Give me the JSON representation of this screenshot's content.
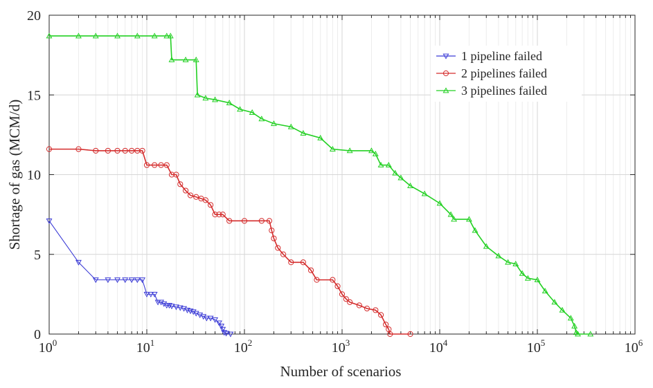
{
  "chart_data": {
    "type": "line",
    "title": "",
    "xlabel": "Number of scenarios",
    "ylabel": "Shortage of gas (MCM/d)",
    "xscale": "log",
    "xlim": [
      1,
      1000000
    ],
    "ylim": [
      0,
      20
    ],
    "x_ticks": [
      {
        "value": 1,
        "base": "10",
        "exp": "0"
      },
      {
        "value": 10,
        "base": "10",
        "exp": "1"
      },
      {
        "value": 100,
        "base": "10",
        "exp": "2"
      },
      {
        "value": 1000,
        "base": "10",
        "exp": "3"
      },
      {
        "value": 10000,
        "base": "10",
        "exp": "4"
      },
      {
        "value": 100000,
        "base": "10",
        "exp": "5"
      },
      {
        "value": 1000000,
        "base": "10",
        "exp": "6"
      }
    ],
    "y_ticks": [
      {
        "value": 0,
        "label": "0"
      },
      {
        "value": 5,
        "label": "5"
      },
      {
        "value": 10,
        "label": "10"
      },
      {
        "value": 15,
        "label": "15"
      },
      {
        "value": 20,
        "label": "20"
      }
    ],
    "grid": true,
    "legend_position": "top-right",
    "series": [
      {
        "name": "1 pipeline failed",
        "color": "#3a3ad6",
        "marker": "triangle-down",
        "points": [
          [
            1,
            7.1
          ],
          [
            2,
            4.5
          ],
          [
            3,
            3.4
          ],
          [
            4,
            3.4
          ],
          [
            5,
            3.4
          ],
          [
            6,
            3.4
          ],
          [
            7,
            3.4
          ],
          [
            8,
            3.4
          ],
          [
            9,
            3.4
          ],
          [
            10,
            2.5
          ],
          [
            11,
            2.5
          ],
          [
            12,
            2.5
          ],
          [
            13,
            2.0
          ],
          [
            14,
            2.0
          ],
          [
            15,
            1.9
          ],
          [
            16,
            1.8
          ],
          [
            17,
            1.8
          ],
          [
            18,
            1.75
          ],
          [
            20,
            1.7
          ],
          [
            22,
            1.65
          ],
          [
            24,
            1.6
          ],
          [
            26,
            1.5
          ],
          [
            28,
            1.45
          ],
          [
            30,
            1.4
          ],
          [
            32,
            1.3
          ],
          [
            35,
            1.2
          ],
          [
            38,
            1.1
          ],
          [
            41,
            1.0
          ],
          [
            45,
            1.0
          ],
          [
            50,
            0.9
          ],
          [
            55,
            0.7
          ],
          [
            58,
            0.5
          ],
          [
            60,
            0.3
          ],
          [
            62,
            0.1
          ],
          [
            65,
            0.05
          ],
          [
            72,
            0.0
          ]
        ]
      },
      {
        "name": "2 pipelines failed",
        "color": "#d42b2b",
        "marker": "circle",
        "points": [
          [
            1,
            11.6
          ],
          [
            2,
            11.6
          ],
          [
            3,
            11.5
          ],
          [
            4,
            11.5
          ],
          [
            5,
            11.5
          ],
          [
            6,
            11.5
          ],
          [
            7,
            11.5
          ],
          [
            8,
            11.5
          ],
          [
            9,
            11.5
          ],
          [
            10,
            10.6
          ],
          [
            12,
            10.6
          ],
          [
            14,
            10.6
          ],
          [
            16,
            10.6
          ],
          [
            18,
            10.0
          ],
          [
            20,
            10.0
          ],
          [
            22,
            9.4
          ],
          [
            25,
            9.0
          ],
          [
            28,
            8.7
          ],
          [
            32,
            8.6
          ],
          [
            36,
            8.5
          ],
          [
            40,
            8.4
          ],
          [
            45,
            8.1
          ],
          [
            50,
            7.5
          ],
          [
            55,
            7.5
          ],
          [
            60,
            7.5
          ],
          [
            70,
            7.1
          ],
          [
            100,
            7.1
          ],
          [
            150,
            7.1
          ],
          [
            180,
            7.1
          ],
          [
            190,
            6.5
          ],
          [
            200,
            6.0
          ],
          [
            220,
            5.4
          ],
          [
            250,
            5.0
          ],
          [
            300,
            4.5
          ],
          [
            400,
            4.5
          ],
          [
            480,
            4.0
          ],
          [
            550,
            3.4
          ],
          [
            800,
            3.4
          ],
          [
            900,
            3.0
          ],
          [
            1000,
            2.5
          ],
          [
            1100,
            2.2
          ],
          [
            1200,
            2.0
          ],
          [
            1500,
            1.8
          ],
          [
            1800,
            1.6
          ],
          [
            2200,
            1.5
          ],
          [
            2500,
            1.2
          ],
          [
            2800,
            0.6
          ],
          [
            3000,
            0.3
          ],
          [
            3100,
            0.0
          ],
          [
            5000,
            0.0
          ]
        ]
      },
      {
        "name": "3 pipelines failed",
        "color": "#22d022",
        "marker": "triangle-up",
        "points": [
          [
            1,
            18.7
          ],
          [
            2,
            18.7
          ],
          [
            3,
            18.7
          ],
          [
            5,
            18.7
          ],
          [
            8,
            18.7
          ],
          [
            12,
            18.7
          ],
          [
            16,
            18.7
          ],
          [
            17.5,
            18.7
          ],
          [
            18,
            17.2
          ],
          [
            25,
            17.2
          ],
          [
            32,
            17.2
          ],
          [
            33,
            15.0
          ],
          [
            40,
            14.8
          ],
          [
            50,
            14.7
          ],
          [
            70,
            14.5
          ],
          [
            90,
            14.1
          ],
          [
            120,
            13.9
          ],
          [
            150,
            13.5
          ],
          [
            200,
            13.2
          ],
          [
            300,
            13.0
          ],
          [
            400,
            12.6
          ],
          [
            600,
            12.3
          ],
          [
            800,
            11.6
          ],
          [
            1200,
            11.5
          ],
          [
            2000,
            11.5
          ],
          [
            2200,
            11.3
          ],
          [
            2500,
            10.6
          ],
          [
            3000,
            10.6
          ],
          [
            3500,
            10.1
          ],
          [
            4000,
            9.8
          ],
          [
            5000,
            9.3
          ],
          [
            7000,
            8.8
          ],
          [
            10000,
            8.2
          ],
          [
            13000,
            7.5
          ],
          [
            14000,
            7.2
          ],
          [
            20000,
            7.2
          ],
          [
            23000,
            6.5
          ],
          [
            30000,
            5.5
          ],
          [
            40000,
            4.9
          ],
          [
            50000,
            4.5
          ],
          [
            60000,
            4.4
          ],
          [
            70000,
            3.8
          ],
          [
            80000,
            3.5
          ],
          [
            100000,
            3.4
          ],
          [
            120000,
            2.7
          ],
          [
            150000,
            2.0
          ],
          [
            180000,
            1.5
          ],
          [
            220000,
            1.0
          ],
          [
            240000,
            0.5
          ],
          [
            250000,
            0.1
          ],
          [
            260000,
            0.0
          ],
          [
            350000,
            0.0
          ]
        ]
      }
    ]
  }
}
